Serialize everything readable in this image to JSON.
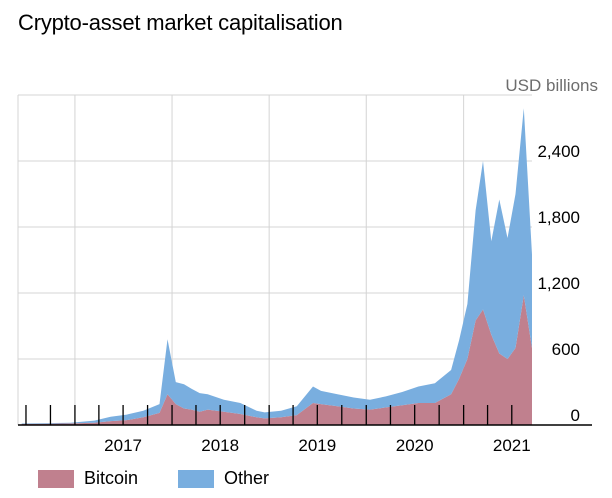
{
  "chart_data": {
    "type": "area",
    "stacked": true,
    "title": "Crypto-asset market capitalisation",
    "ylabel": "USD billions",
    "ylim": [
      0,
      3000
    ],
    "yticks": [
      0,
      600,
      1200,
      1800,
      2400
    ],
    "ytick_labels": [
      "0",
      "600",
      "1,200",
      "1,800",
      "2,400"
    ],
    "xlim": [
      "2016-06-01",
      "2021-09-15"
    ],
    "xtick_labels": [
      "2017",
      "2018",
      "2019",
      "2020",
      "2021"
    ],
    "xticks": [
      "2017-01-01",
      "2018-01-01",
      "2019-01-01",
      "2020-01-01",
      "2021-01-01"
    ],
    "grid": true,
    "legend_position": "bottom",
    "x": [
      "2016-06",
      "2016-09",
      "2016-12",
      "2017-03",
      "2017-05",
      "2017-07",
      "2017-09",
      "2017-11",
      "2017-12",
      "2018-01",
      "2018-02",
      "2018-03",
      "2018-04",
      "2018-05",
      "2018-07",
      "2018-09",
      "2018-11",
      "2018-12",
      "2019-02",
      "2019-04",
      "2019-06",
      "2019-07",
      "2019-09",
      "2019-11",
      "2020-01",
      "2020-03",
      "2020-05",
      "2020-07",
      "2020-09",
      "2020-11",
      "2020-12",
      "2021-01",
      "2021-02",
      "2021-03",
      "2021-04",
      "2021-05",
      "2021-06",
      "2021-07",
      "2021-08",
      "2021-09"
    ],
    "series": [
      {
        "name": "Bitcoin",
        "color": "#c0808e",
        "values": [
          10,
          12,
          15,
          20,
          35,
          45,
          70,
          110,
          280,
          190,
          150,
          140,
          120,
          140,
          120,
          100,
          70,
          60,
          70,
          90,
          200,
          190,
          170,
          150,
          140,
          160,
          180,
          200,
          200,
          280,
          420,
          600,
          950,
          1050,
          820,
          650,
          600,
          700,
          1180,
          700
        ]
      },
      {
        "name": "Other",
        "color": "#79aedf",
        "values": [
          5,
          5,
          5,
          20,
          40,
          50,
          60,
          80,
          500,
          200,
          220,
          190,
          170,
          140,
          110,
          100,
          60,
          55,
          60,
          80,
          150,
          120,
          110,
          100,
          90,
          100,
          120,
          150,
          180,
          220,
          350,
          500,
          1000,
          1350,
          850,
          1400,
          1100,
          1400,
          1700,
          850
        ]
      }
    ]
  }
}
